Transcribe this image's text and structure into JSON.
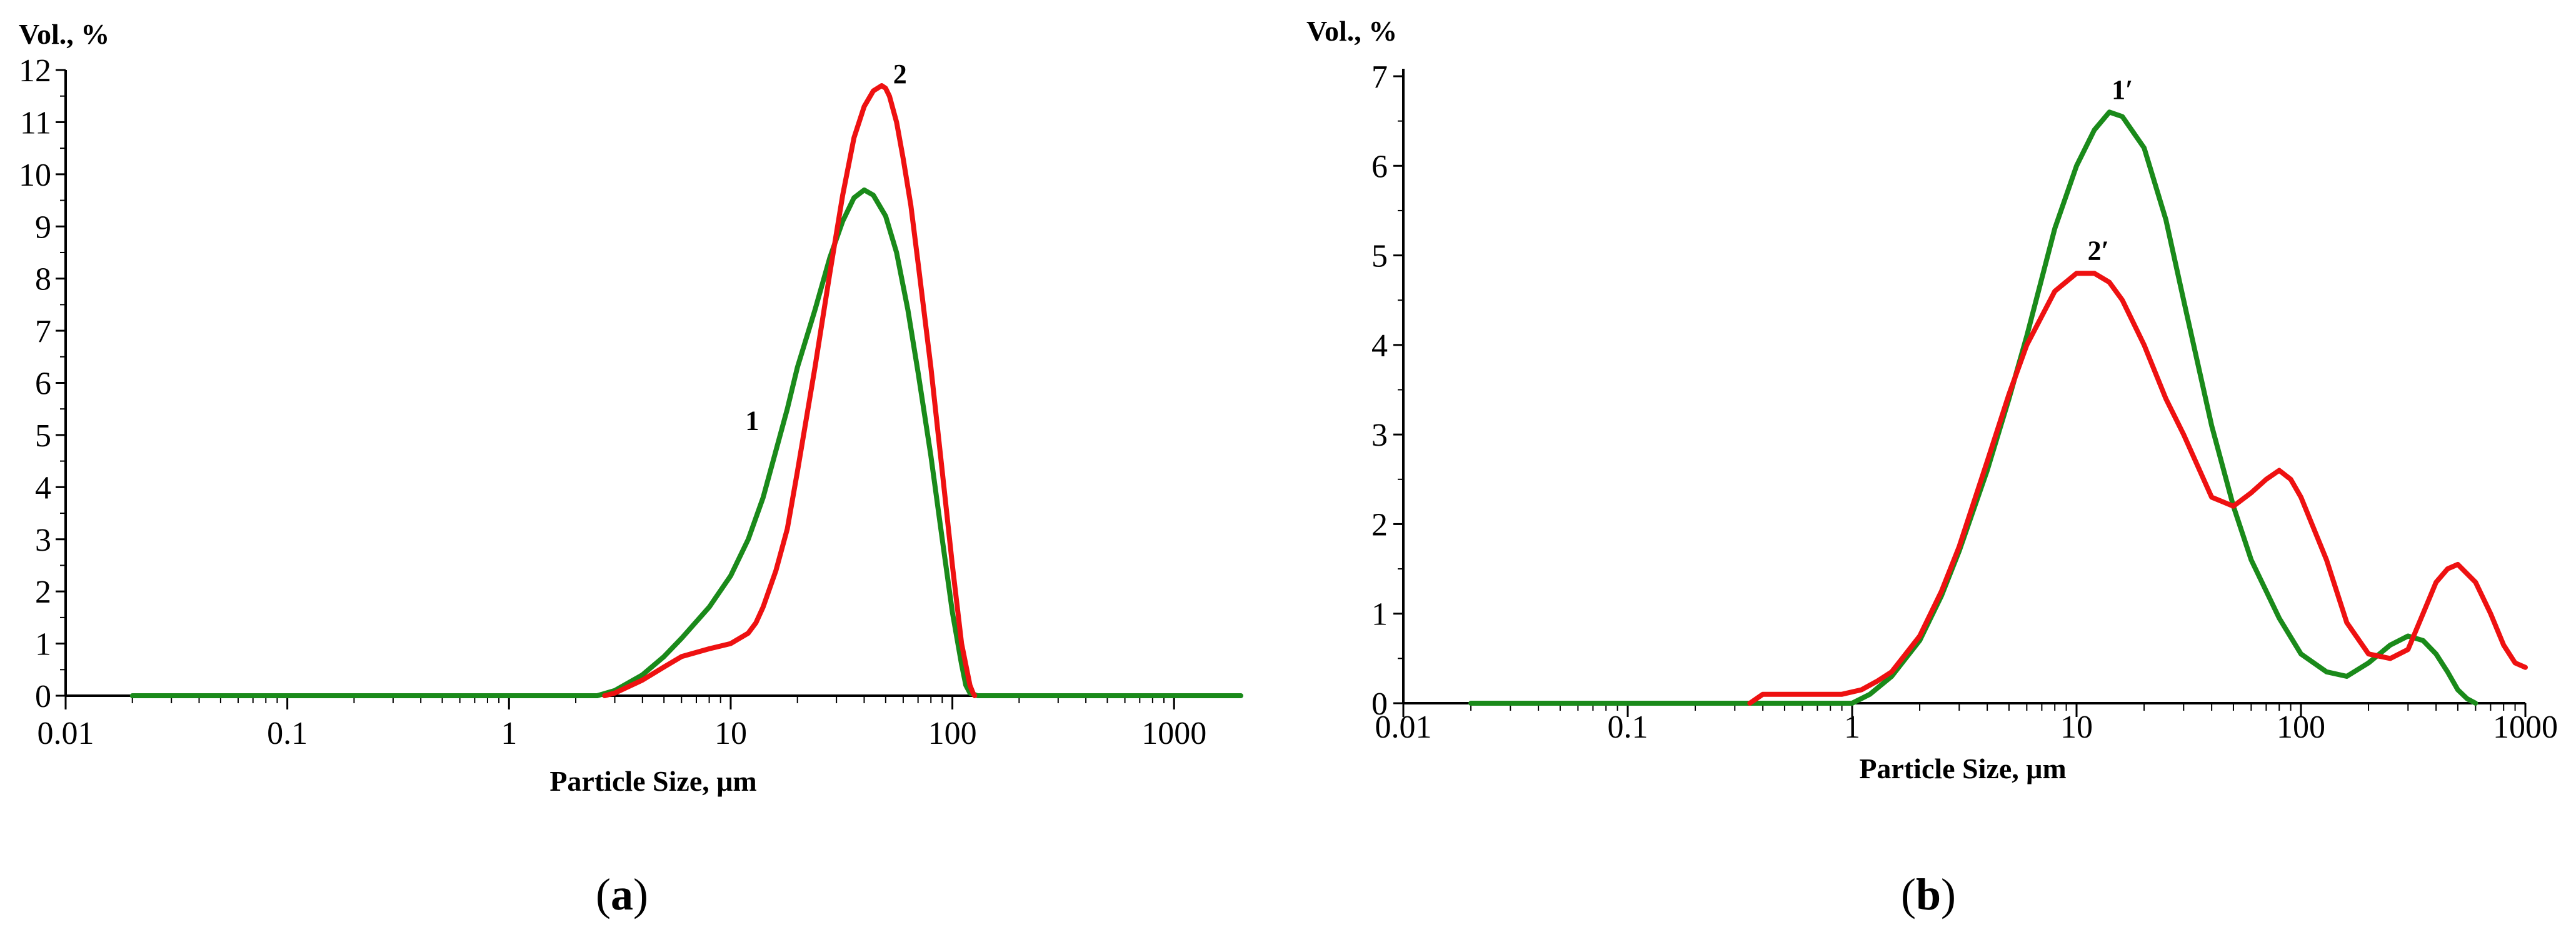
{
  "figure": {
    "panel_a_label": {
      "open": "(",
      "letter": "a",
      "close": ")"
    },
    "panel_b_label": {
      "open": "(",
      "letter": "b",
      "close": ")"
    }
  },
  "chart_data": [
    {
      "type": "line",
      "xlabel": "Particle Size, μm",
      "ylabel": "Vol., %",
      "xscale": "log",
      "xlim": [
        0.01,
        2000
      ],
      "ylim": [
        0,
        12
      ],
      "xticks": [
        0.01,
        0.1,
        1,
        10,
        100,
        1000
      ],
      "xtick_labels": [
        "0.01",
        "0.1",
        "1",
        "10",
        "100",
        "1000"
      ],
      "yticks": [
        0,
        1,
        2,
        3,
        4,
        5,
        6,
        7,
        8,
        9,
        10,
        11,
        12
      ],
      "ytick_labels": [
        "0",
        "1",
        "2",
        "3",
        "4",
        "5",
        "6",
        "7",
        "8",
        "9",
        "10",
        "11",
        "12"
      ],
      "grid": false,
      "colors": {
        "green": "#1a8a1a",
        "red": "#ee1111"
      },
      "series": [
        {
          "name": "1",
          "color": "green",
          "label_at": [
            12.5,
            5.1
          ],
          "x": [
            0.02,
            2.5,
            3,
            4,
            5,
            6,
            8,
            10,
            12,
            14,
            16,
            18,
            20,
            24,
            28,
            32,
            36,
            40,
            44,
            50,
            56,
            63,
            70,
            80,
            90,
            100,
            110,
            115,
            120,
            130,
            2000
          ],
          "y": [
            0,
            0,
            0.1,
            0.4,
            0.75,
            1.1,
            1.7,
            2.3,
            3.0,
            3.8,
            4.7,
            5.5,
            6.3,
            7.4,
            8.4,
            9.1,
            9.55,
            9.7,
            9.6,
            9.2,
            8.5,
            7.4,
            6.2,
            4.6,
            3.0,
            1.6,
            0.6,
            0.2,
            0.05,
            0,
            0
          ]
        },
        {
          "name": "2",
          "color": "red",
          "label_at": [
            58,
            11.75
          ],
          "x": [
            2.7,
            3,
            4,
            5,
            6,
            8,
            10,
            12,
            13,
            14,
            16,
            18,
            20,
            24,
            28,
            32,
            36,
            40,
            44,
            48,
            50,
            52,
            56,
            60,
            65,
            70,
            80,
            90,
            100,
            110,
            120,
            124,
            126
          ],
          "y": [
            0,
            0.05,
            0.3,
            0.55,
            0.75,
            0.9,
            1.0,
            1.2,
            1.4,
            1.7,
            2.4,
            3.2,
            4.3,
            6.3,
            8.1,
            9.6,
            10.7,
            11.3,
            11.6,
            11.7,
            11.65,
            11.5,
            11.0,
            10.3,
            9.4,
            8.3,
            6.3,
            4.3,
            2.5,
            1.0,
            0.2,
            0.05,
            0
          ]
        }
      ]
    },
    {
      "type": "line",
      "xlabel": "Particle Size, μm",
      "ylabel": "Vol., %",
      "xscale": "log",
      "xlim": [
        0.01,
        1000
      ],
      "ylim": [
        0,
        7
      ],
      "xticks": [
        0.01,
        0.1,
        1,
        10,
        100,
        1000
      ],
      "xtick_labels": [
        "0.01",
        "0.1",
        "1",
        "10",
        "100",
        "1000"
      ],
      "yticks": [
        0,
        1,
        2,
        3,
        4,
        5,
        6,
        7
      ],
      "ytick_labels": [
        "0",
        "1",
        "2",
        "3",
        "4",
        "5",
        "6",
        "7"
      ],
      "grid": false,
      "colors": {
        "green": "#1a8a1a",
        "red": "#ee1111"
      },
      "series": [
        {
          "name": "1′",
          "color": "green",
          "label_at": [
            16,
            6.75
          ],
          "x": [
            0.02,
            1.0,
            1.2,
            1.5,
            2,
            2.5,
            3,
            4,
            5,
            6,
            8,
            10,
            12,
            14,
            16,
            20,
            25,
            30,
            40,
            50,
            60,
            80,
            100,
            130,
            160,
            200,
            250,
            300,
            350,
            400,
            450,
            500,
            550,
            600
          ],
          "y": [
            0,
            0,
            0.1,
            0.3,
            0.7,
            1.2,
            1.7,
            2.6,
            3.4,
            4.1,
            5.3,
            6.0,
            6.4,
            6.6,
            6.55,
            6.2,
            5.4,
            4.5,
            3.1,
            2.2,
            1.6,
            0.95,
            0.55,
            0.35,
            0.3,
            0.45,
            0.65,
            0.75,
            0.7,
            0.55,
            0.35,
            0.15,
            0.05,
            0
          ]
        },
        {
          "name": "2′",
          "color": "red",
          "label_at": [
            12.5,
            4.95
          ],
          "x": [
            0.35,
            0.4,
            0.5,
            0.7,
            0.9,
            1.1,
            1.3,
            1.5,
            2,
            2.5,
            3,
            4,
            5,
            6,
            8,
            10,
            12,
            14,
            16,
            20,
            25,
            30,
            40,
            50,
            60,
            70,
            80,
            90,
            100,
            130,
            160,
            200,
            250,
            300,
            350,
            400,
            450,
            500,
            600,
            700,
            800,
            900,
            1000
          ],
          "y": [
            0,
            0.1,
            0.1,
            0.1,
            0.1,
            0.15,
            0.25,
            0.35,
            0.75,
            1.25,
            1.75,
            2.7,
            3.45,
            4.0,
            4.6,
            4.8,
            4.8,
            4.7,
            4.5,
            4.0,
            3.4,
            3.0,
            2.3,
            2.2,
            2.35,
            2.5,
            2.6,
            2.5,
            2.3,
            1.6,
            0.9,
            0.55,
            0.5,
            0.6,
            1.0,
            1.35,
            1.5,
            1.55,
            1.35,
            1.0,
            0.65,
            0.45,
            0.4
          ]
        }
      ]
    }
  ]
}
